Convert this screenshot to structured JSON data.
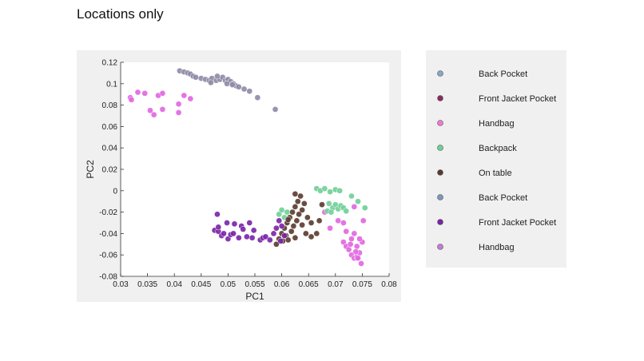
{
  "page": {
    "title": "Locations only"
  },
  "chart_data": {
    "type": "scatter",
    "title": "",
    "xlabel": "PC1",
    "ylabel": "PC2",
    "xlim": [
      0.03,
      0.08
    ],
    "ylim": [
      -0.08,
      0.12
    ],
    "xticks": [
      "0.03",
      "0.035",
      "0.04",
      "0.045",
      "0.05",
      "0.055",
      "0.06",
      "0.065",
      "0.07",
      "0.075",
      "0.08"
    ],
    "yticks": [
      "-0.08",
      "-0.06",
      "-0.04",
      "-0.02",
      "0",
      "0.02",
      "0.04",
      "0.06",
      "0.08",
      "0.1",
      "0.12"
    ],
    "grid": false,
    "legend_placement": "outside-right",
    "series": [
      {
        "name": "Back Pocket",
        "color": "#8e8aa6",
        "points": [
          [
            0.041,
            0.112
          ],
          [
            0.0418,
            0.111
          ],
          [
            0.0425,
            0.11
          ],
          [
            0.043,
            0.109
          ],
          [
            0.0435,
            0.107
          ],
          [
            0.044,
            0.106
          ],
          [
            0.045,
            0.105
          ],
          [
            0.0458,
            0.104
          ],
          [
            0.0465,
            0.103
          ],
          [
            0.047,
            0.105
          ],
          [
            0.0478,
            0.103
          ],
          [
            0.0485,
            0.104
          ],
          [
            0.049,
            0.106
          ],
          [
            0.0495,
            0.103
          ],
          [
            0.05,
            0.104
          ],
          [
            0.0505,
            0.102
          ],
          [
            0.051,
            0.1
          ],
          [
            0.0515,
            0.098
          ],
          [
            0.052,
            0.097
          ],
          [
            0.053,
            0.095
          ],
          [
            0.054,
            0.093
          ],
          [
            0.0498,
            0.1
          ],
          [
            0.0508,
            0.099
          ],
          [
            0.048,
            0.107
          ],
          [
            0.0468,
            0.101
          ],
          [
            0.0555,
            0.087
          ],
          [
            0.0588,
            0.076
          ]
        ]
      },
      {
        "name": "Front Jacket Pocket",
        "color": "#7a2a6e",
        "points": []
      },
      {
        "name": "Handbag",
        "color": "#e066e0",
        "points": [
          [
            0.0318,
            0.087
          ],
          [
            0.032,
            0.085
          ],
          [
            0.0332,
            0.092
          ],
          [
            0.0345,
            0.091
          ],
          [
            0.0355,
            0.075
          ],
          [
            0.0362,
            0.071
          ],
          [
            0.037,
            0.089
          ],
          [
            0.0378,
            0.091
          ],
          [
            0.0378,
            0.076
          ],
          [
            0.0408,
            0.073
          ],
          [
            0.0408,
            0.081
          ],
          [
            0.0418,
            0.089
          ],
          [
            0.043,
            0.086
          ],
          [
            0.068,
            -0.02
          ],
          [
            0.069,
            -0.035
          ],
          [
            0.0705,
            -0.028
          ],
          [
            0.0715,
            -0.048
          ],
          [
            0.072,
            -0.052
          ],
          [
            0.0725,
            -0.055
          ],
          [
            0.073,
            -0.06
          ],
          [
            0.0735,
            -0.063
          ],
          [
            0.074,
            -0.062
          ],
          [
            0.0745,
            -0.058
          ],
          [
            0.073,
            -0.045
          ],
          [
            0.072,
            -0.038
          ],
          [
            0.0715,
            -0.03
          ],
          [
            0.075,
            -0.048
          ],
          [
            0.0748,
            -0.068
          ],
          [
            0.0752,
            -0.028
          ],
          [
            0.0735,
            -0.015
          ],
          [
            0.074,
            -0.052
          ],
          [
            0.0735,
            -0.04
          ],
          [
            0.0745,
            -0.045
          ],
          [
            0.0728,
            -0.05
          ],
          [
            0.0738,
            -0.057
          ],
          [
            0.0742,
            -0.063
          ]
        ]
      },
      {
        "name": "Backpack",
        "color": "#6fcf97",
        "points": [
          [
            0.0595,
            -0.022
          ],
          [
            0.06,
            -0.018
          ],
          [
            0.0605,
            -0.025
          ],
          [
            0.061,
            -0.02
          ],
          [
            0.0665,
            0.002
          ],
          [
            0.0672,
            0.0
          ],
          [
            0.068,
            0.002
          ],
          [
            0.069,
            -0.001
          ],
          [
            0.07,
            0.001
          ],
          [
            0.0708,
            0.0
          ],
          [
            0.0688,
            -0.012
          ],
          [
            0.0695,
            -0.016
          ],
          [
            0.07,
            -0.013
          ],
          [
            0.0705,
            -0.017
          ],
          [
            0.071,
            -0.014
          ],
          [
            0.0715,
            -0.016
          ],
          [
            0.072,
            -0.019
          ],
          [
            0.0685,
            -0.019
          ],
          [
            0.0692,
            -0.02
          ],
          [
            0.073,
            -0.005
          ],
          [
            0.0742,
            -0.01
          ],
          [
            0.0755,
            -0.016
          ]
        ]
      },
      {
        "name": "On table",
        "color": "#5a3a2e",
        "points": [
          [
            0.059,
            -0.05
          ],
          [
            0.0595,
            -0.045
          ],
          [
            0.06,
            -0.04
          ],
          [
            0.0605,
            -0.035
          ],
          [
            0.061,
            -0.03
          ],
          [
            0.0615,
            -0.025
          ],
          [
            0.062,
            -0.02
          ],
          [
            0.0625,
            -0.015
          ],
          [
            0.063,
            -0.01
          ],
          [
            0.0635,
            -0.005
          ],
          [
            0.0608,
            -0.042
          ],
          [
            0.0618,
            -0.038
          ],
          [
            0.0628,
            -0.028
          ],
          [
            0.0632,
            -0.022
          ],
          [
            0.0622,
            -0.033
          ],
          [
            0.0612,
            -0.027
          ],
          [
            0.0602,
            -0.047
          ],
          [
            0.0638,
            -0.018
          ],
          [
            0.0642,
            -0.012
          ],
          [
            0.0625,
            -0.003
          ],
          [
            0.0645,
            -0.04
          ],
          [
            0.0655,
            -0.043
          ],
          [
            0.0665,
            -0.04
          ],
          [
            0.067,
            -0.028
          ],
          [
            0.0675,
            -0.013
          ],
          [
            0.0655,
            -0.03
          ],
          [
            0.0638,
            -0.032
          ],
          [
            0.0625,
            -0.044
          ],
          [
            0.0612,
            -0.046
          ],
          [
            0.0648,
            -0.025
          ]
        ]
      },
      {
        "name": "Back Pocket",
        "color": "#7b98b8",
        "points": []
      },
      {
        "name": "Front Jacket Pocket",
        "color": "#7a22a8",
        "points": [
          [
            0.0475,
            -0.037
          ],
          [
            0.048,
            -0.022
          ],
          [
            0.0482,
            -0.038
          ],
          [
            0.0488,
            -0.042
          ],
          [
            0.0492,
            -0.04
          ],
          [
            0.0498,
            -0.03
          ],
          [
            0.05,
            -0.045
          ],
          [
            0.0505,
            -0.041
          ],
          [
            0.051,
            -0.04
          ],
          [
            0.052,
            -0.044
          ],
          [
            0.0525,
            -0.033
          ],
          [
            0.0528,
            -0.036
          ],
          [
            0.0535,
            -0.043
          ],
          [
            0.054,
            -0.03
          ],
          [
            0.0548,
            -0.037
          ],
          [
            0.056,
            -0.046
          ],
          [
            0.0565,
            -0.044
          ],
          [
            0.057,
            -0.043
          ],
          [
            0.0578,
            -0.046
          ],
          [
            0.0585,
            -0.04
          ],
          [
            0.059,
            -0.035
          ],
          [
            0.0595,
            -0.028
          ],
          [
            0.06,
            -0.033
          ],
          [
            0.0605,
            -0.042
          ],
          [
            0.0598,
            -0.047
          ],
          [
            0.0482,
            -0.034
          ],
          [
            0.0512,
            -0.031
          ],
          [
            0.0545,
            -0.044
          ]
        ]
      },
      {
        "name": "Handbag",
        "color": "#c77bd8",
        "points": []
      }
    ]
  },
  "legend": {
    "items": [
      {
        "label": "Back Pocket",
        "color": "#8aa6c8"
      },
      {
        "label": "Front Jacket Pocket",
        "color": "#8b2a5e"
      },
      {
        "label": "Handbag",
        "color": "#f07ad0"
      },
      {
        "label": "Backpack",
        "color": "#6fcf97"
      },
      {
        "label": "On table",
        "color": "#5a3a2e"
      },
      {
        "label": "Back Pocket",
        "color": "#7b98b8"
      },
      {
        "label": "Front Jacket Pocket",
        "color": "#7a22a8"
      },
      {
        "label": "Handbag",
        "color": "#c77bd8"
      }
    ]
  }
}
